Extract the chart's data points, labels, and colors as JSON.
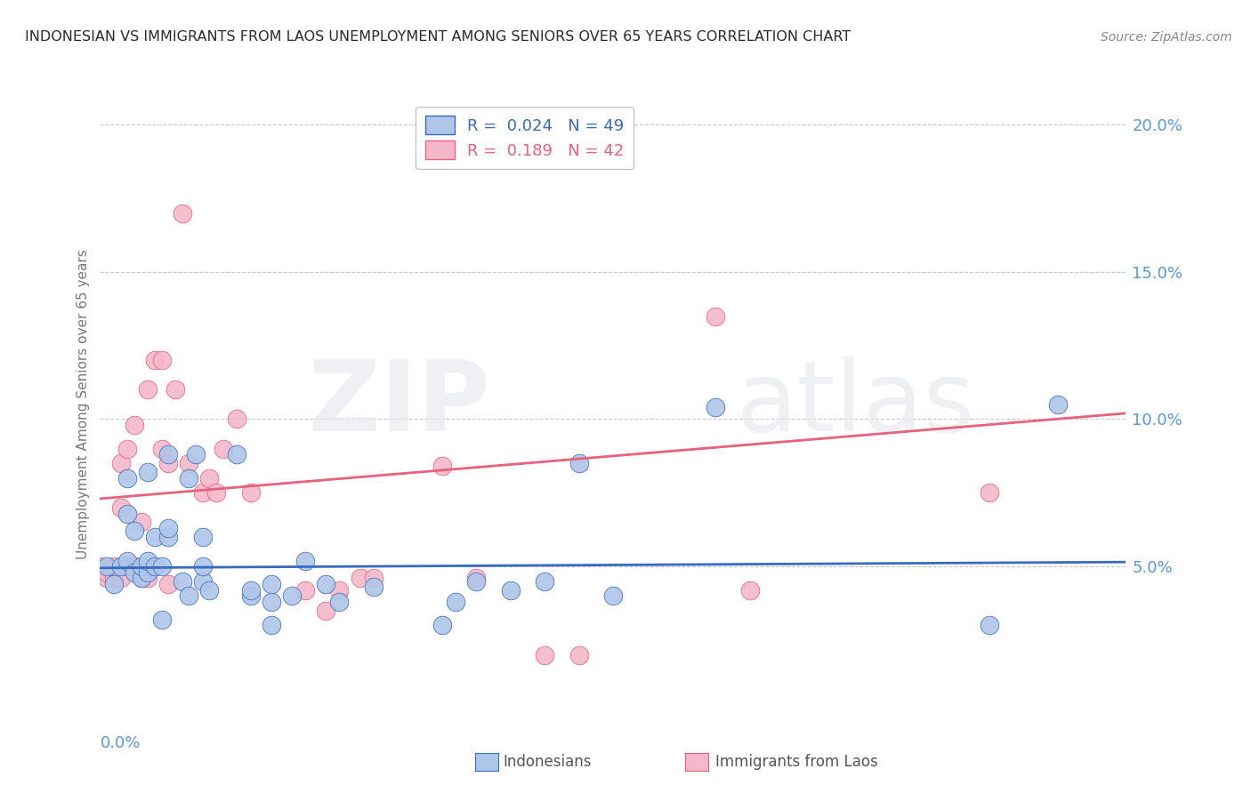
{
  "title": "INDONESIAN VS IMMIGRANTS FROM LAOS UNEMPLOYMENT AMONG SENIORS OVER 65 YEARS CORRELATION CHART",
  "source": "Source: ZipAtlas.com",
  "ylabel": "Unemployment Among Seniors over 65 years",
  "right_yticklabels": [
    "",
    "5.0%",
    "10.0%",
    "15.0%",
    "20.0%"
  ],
  "right_ytick_vals": [
    0.0,
    0.05,
    0.1,
    0.15,
    0.2
  ],
  "xmin": 0.0,
  "xmax": 0.15,
  "ymin": 0.0,
  "ymax": 0.21,
  "indonesian_color": "#aec6e8",
  "laos_color": "#f5b8cb",
  "indonesian_line_color": "#3a6abf",
  "laos_line_color": "#e8607a",
  "legend_label1": "R =  0.024   N = 49",
  "legend_label2": "R =  0.189   N = 42",
  "background_color": "#ffffff",
  "grid_color": "#c8c8c8",
  "title_color": "#2a2a2a",
  "axis_label_color": "#5599dd",
  "indonesian_trend_x0": 0.0,
  "indonesian_trend_x1": 0.15,
  "indonesian_trend_y0": 0.0495,
  "indonesian_trend_y1": 0.0515,
  "laos_trend_x0": 0.0,
  "laos_trend_x1": 0.15,
  "laos_trend_y0": 0.073,
  "laos_trend_y1": 0.102,
  "indonesian_x": [
    0.001,
    0.002,
    0.003,
    0.004,
    0.004,
    0.005,
    0.005,
    0.006,
    0.006,
    0.007,
    0.007,
    0.008,
    0.008,
    0.009,
    0.009,
    0.01,
    0.01,
    0.01,
    0.012,
    0.013,
    0.013,
    0.014,
    0.015,
    0.015,
    0.015,
    0.016,
    0.02,
    0.022,
    0.022,
    0.025,
    0.025,
    0.025,
    0.028,
    0.03,
    0.033,
    0.035,
    0.04,
    0.05,
    0.052,
    0.055,
    0.06,
    0.065,
    0.07,
    0.075,
    0.09,
    0.13,
    0.14,
    0.004,
    0.007
  ],
  "indonesian_y": [
    0.05,
    0.044,
    0.05,
    0.052,
    0.068,
    0.048,
    0.062,
    0.046,
    0.05,
    0.048,
    0.052,
    0.05,
    0.06,
    0.032,
    0.05,
    0.06,
    0.063,
    0.088,
    0.045,
    0.04,
    0.08,
    0.088,
    0.06,
    0.045,
    0.05,
    0.042,
    0.088,
    0.04,
    0.042,
    0.03,
    0.038,
    0.044,
    0.04,
    0.052,
    0.044,
    0.038,
    0.043,
    0.03,
    0.038,
    0.045,
    0.042,
    0.045,
    0.085,
    0.04,
    0.104,
    0.03,
    0.105,
    0.08,
    0.082
  ],
  "laos_x": [
    0.0,
    0.001,
    0.001,
    0.002,
    0.002,
    0.003,
    0.003,
    0.003,
    0.004,
    0.004,
    0.005,
    0.005,
    0.006,
    0.006,
    0.007,
    0.007,
    0.008,
    0.009,
    0.009,
    0.01,
    0.011,
    0.012,
    0.013,
    0.015,
    0.016,
    0.017,
    0.018,
    0.02,
    0.022,
    0.03,
    0.033,
    0.035,
    0.038,
    0.04,
    0.05,
    0.055,
    0.065,
    0.07,
    0.09,
    0.095,
    0.13,
    0.01
  ],
  "laos_y": [
    0.05,
    0.046,
    0.048,
    0.046,
    0.05,
    0.046,
    0.07,
    0.085,
    0.05,
    0.09,
    0.05,
    0.098,
    0.046,
    0.065,
    0.046,
    0.11,
    0.12,
    0.09,
    0.12,
    0.044,
    0.11,
    0.17,
    0.085,
    0.075,
    0.08,
    0.075,
    0.09,
    0.1,
    0.075,
    0.042,
    0.035,
    0.042,
    0.046,
    0.046,
    0.084,
    0.046,
    0.02,
    0.02,
    0.135,
    0.042,
    0.075,
    0.085
  ]
}
